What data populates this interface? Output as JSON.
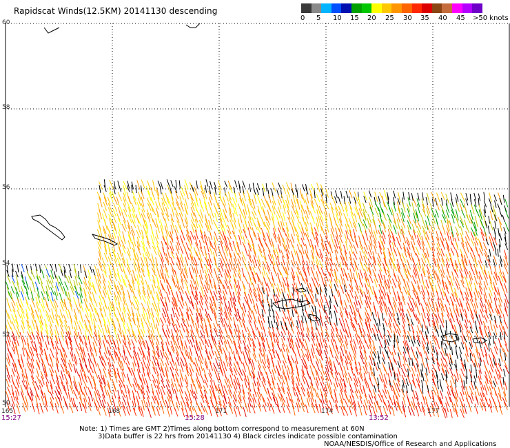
{
  "title": "Rapidscat Winds(12.5KM) 20141130 descending",
  "colorbar": {
    "labels": [
      "0",
      "5",
      "10",
      "15",
      "20",
      "25",
      "30",
      "35",
      "40",
      "45",
      ">50 knots"
    ],
    "colors": [
      "#3a3a3a",
      "#8a8a8a",
      "#00b4ff",
      "#0050ff",
      "#0010b0",
      "#00a000",
      "#00c800",
      "#ffff00",
      "#ffc800",
      "#ff9600",
      "#ff6400",
      "#ff2800",
      "#dc0000",
      "#8b4513",
      "#c46c3c",
      "#ff00ff",
      "#b400ff",
      "#6e00c8"
    ]
  },
  "lat_labels": [
    "60",
    "58",
    "56",
    "54",
    "52",
    "50"
  ],
  "lon_labels": [
    "165",
    "168",
    "171",
    "174",
    "177"
  ],
  "time_labels": [
    "15:27",
    "15:28",
    "13:52"
  ],
  "notes": [
    "Note: 1) Times are GMT 2)Times along bottom correspond to measurement at 60N",
    "3)Data buffer is 22 hrs from 20141130 4) Black circles indicate possible contamination",
    "NOAA/NESDIS/Office of Research and Applications"
  ],
  "icons": {
    "wind_barb": "wind-barb-icon",
    "island": "island-shape"
  }
}
